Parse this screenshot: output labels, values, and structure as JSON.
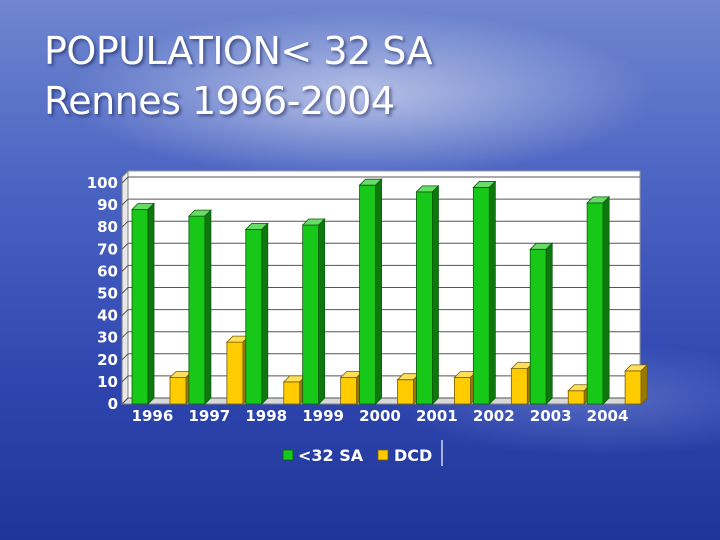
{
  "slide": {
    "title": "POPULATION< 32 SA\nRennes 1996-2004"
  },
  "chart_data": {
    "type": "bar",
    "categories": [
      "1996",
      "1997",
      "1998",
      "1999",
      "2000",
      "2001",
      "2002",
      "2003",
      "2004"
    ],
    "series": [
      {
        "name": "<32 SA",
        "values": [
          88,
          85,
          79,
          81,
          99,
          96,
          98,
          70,
          91
        ],
        "color": "#18c818"
      },
      {
        "name": "DCD",
        "values": [
          12,
          28,
          10,
          12,
          11,
          12,
          16,
          6,
          15
        ],
        "color": "#ffcc00"
      }
    ],
    "ylim": [
      0,
      100
    ],
    "yticks": [
      "0",
      "10",
      "20",
      "30",
      "40",
      "50",
      "60",
      "70",
      "80",
      "90",
      "100"
    ],
    "grid": true,
    "legend": "bottom",
    "plot_area_color": "#ffffff"
  }
}
